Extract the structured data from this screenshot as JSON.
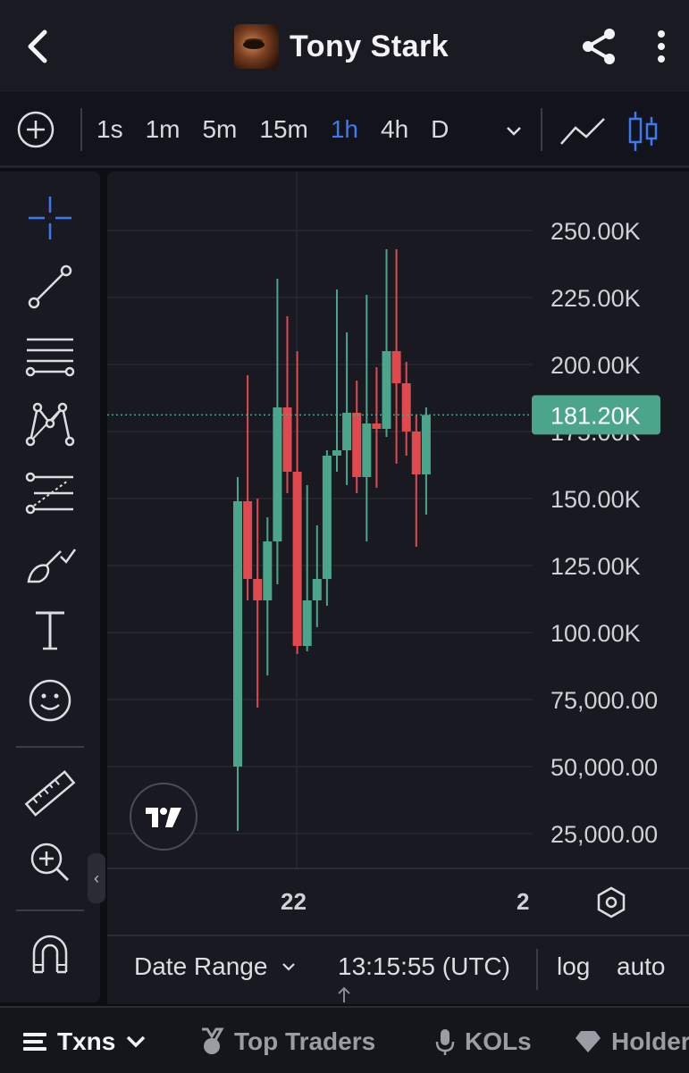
{
  "header": {
    "title": "Tony Stark"
  },
  "toolbar": {
    "intervals": [
      "1s",
      "1m",
      "5m",
      "15m",
      "1h",
      "4h",
      "D"
    ],
    "active_interval": "1h"
  },
  "chart_data": {
    "type": "candlestick",
    "y_ticks": [
      "250.00K",
      "225.00K",
      "200.00K",
      "175.00K",
      "150.00K",
      "125.00K",
      "100.00K",
      "75,000.00",
      "50,000.00",
      "25,000.00"
    ],
    "y_tick_values": [
      250000,
      225000,
      200000,
      175000,
      150000,
      125000,
      100000,
      75000,
      50000,
      25000
    ],
    "x_ticks": [
      "22",
      "2"
    ],
    "current_price_label": "181.20K",
    "current_price": 181200,
    "colors": {
      "up": "#4aa58a",
      "down": "#e04a4f",
      "price_line": "#4aa58a"
    },
    "candles": [
      {
        "o": 50000,
        "h": 158000,
        "l": 26000,
        "c": 149000
      },
      {
        "o": 149000,
        "h": 196000,
        "l": 112000,
        "c": 120000
      },
      {
        "o": 120000,
        "h": 150000,
        "l": 72000,
        "c": 112000
      },
      {
        "o": 112000,
        "h": 143000,
        "l": 84000,
        "c": 134000
      },
      {
        "o": 134000,
        "h": 232000,
        "l": 118000,
        "c": 184000
      },
      {
        "o": 184000,
        "h": 218000,
        "l": 152000,
        "c": 160000
      },
      {
        "o": 160000,
        "h": 205000,
        "l": 92000,
        "c": 95000
      },
      {
        "o": 95000,
        "h": 155000,
        "l": 93000,
        "c": 112000
      },
      {
        "o": 112000,
        "h": 140000,
        "l": 102000,
        "c": 120000
      },
      {
        "o": 120000,
        "h": 168000,
        "l": 110000,
        "c": 166000
      },
      {
        "o": 166000,
        "h": 228000,
        "l": 160000,
        "c": 168000
      },
      {
        "o": 168000,
        "h": 212000,
        "l": 155000,
        "c": 182000
      },
      {
        "o": 182000,
        "h": 194000,
        "l": 152000,
        "c": 158000
      },
      {
        "o": 158000,
        "h": 226000,
        "l": 134000,
        "c": 178000
      },
      {
        "o": 178000,
        "h": 199000,
        "l": 154000,
        "c": 176000
      },
      {
        "o": 176000,
        "h": 243000,
        "l": 173000,
        "c": 205000
      },
      {
        "o": 205000,
        "h": 243000,
        "l": 163000,
        "c": 193000
      },
      {
        "o": 193000,
        "h": 201000,
        "l": 166000,
        "c": 175000
      },
      {
        "o": 175000,
        "h": 181000,
        "l": 132000,
        "c": 159000
      },
      {
        "o": 159000,
        "h": 184000,
        "l": 144000,
        "c": 181200
      }
    ]
  },
  "bottom_bar": {
    "date_range_label": "Date Range",
    "time": "13:15:55 (UTC)",
    "log_label": "log",
    "auto_label": "auto"
  },
  "tabs": [
    {
      "label": "Txns",
      "icon": "list-icon"
    },
    {
      "label": "Top Traders",
      "icon": "medal-icon"
    },
    {
      "label": "KOLs",
      "icon": "microphone-icon"
    },
    {
      "label": "Holders",
      "icon": "diamond-icon"
    }
  ]
}
